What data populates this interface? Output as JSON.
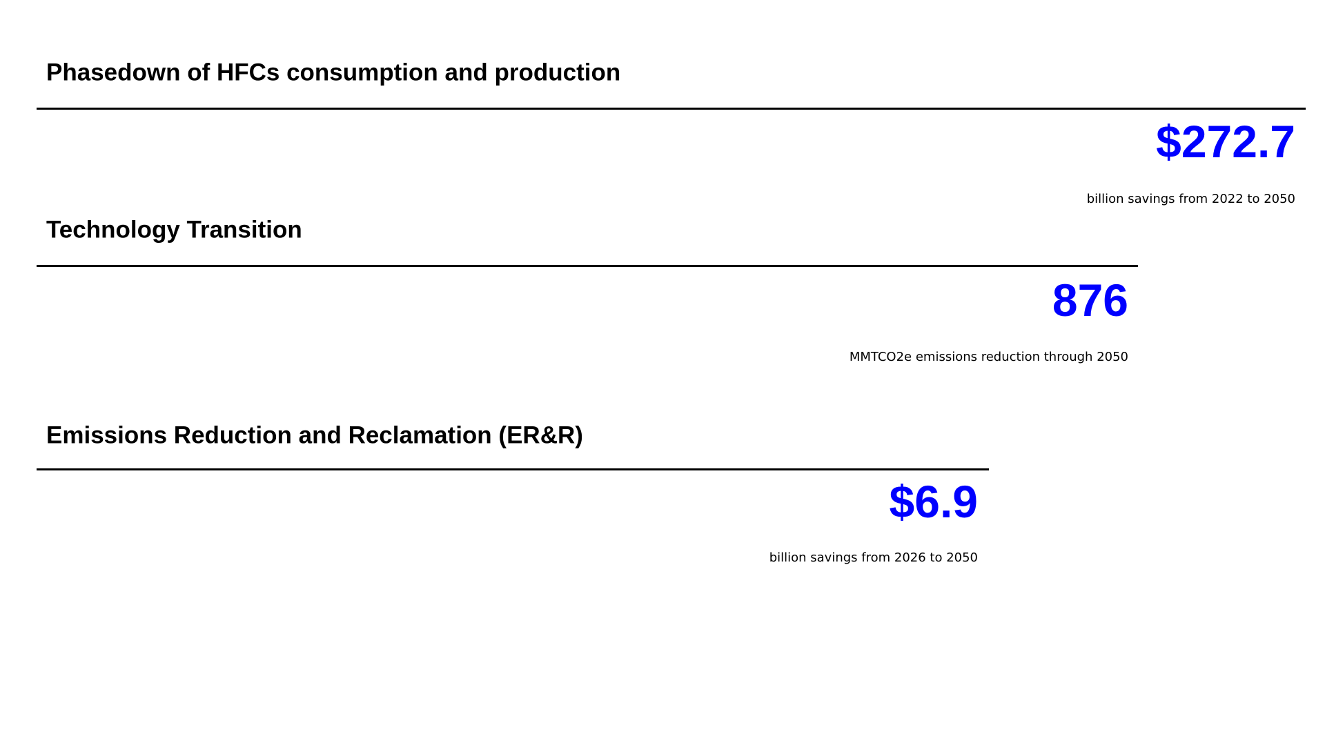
{
  "sections": [
    {
      "title": "Phasedown of HFCs consumption and production",
      "figure": "$272.7",
      "caption": "billion savings from 2022 to 2050"
    },
    {
      "title": "Technology Transition",
      "figure": "876",
      "caption": "MMTCO2e emissions reduction through 2050"
    },
    {
      "title": "Emissions Reduction and Reclamation (ER&R)",
      "figure": "$6.9",
      "caption": "billion savings from 2026 to 2050"
    }
  ]
}
